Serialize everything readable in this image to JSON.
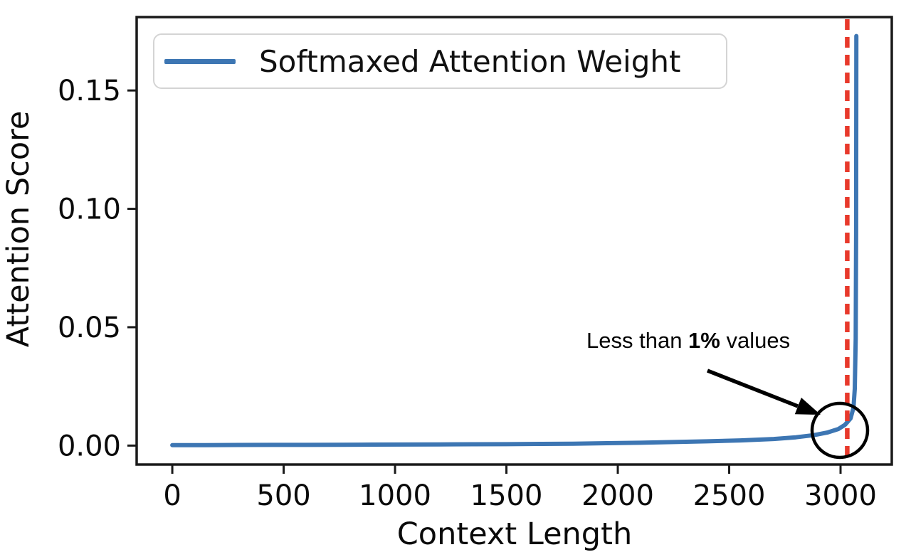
{
  "figure": {
    "background_color": "#ffffff",
    "text_color": "#0a0a0a",
    "axis_line_color": "#1a1a1a"
  },
  "legend": {
    "label": "Softmaxed Attention Weight",
    "swatch_color": "#3d76b3"
  },
  "annotation": {
    "prefix": "Less than ",
    "bold": "1%",
    "suffix": " values"
  },
  "chart_data": {
    "type": "line",
    "title": "",
    "xlabel": "Context Length",
    "ylabel": "Attention Score",
    "xlim": [
      -160,
      3230
    ],
    "ylim": [
      -0.008,
      0.181
    ],
    "grid": false,
    "legend_position": "upper left",
    "x_ticks": [
      0,
      500,
      1000,
      1500,
      2000,
      2500,
      3000
    ],
    "x_tick_labels": [
      "0",
      "500",
      "1000",
      "1500",
      "2000",
      "2500",
      "3000"
    ],
    "y_ticks": [
      0.0,
      0.05,
      0.1,
      0.15
    ],
    "y_tick_labels": [
      "0.00",
      "0.05",
      "0.10",
      "0.15"
    ],
    "cutoff_line": {
      "x": 3030,
      "color": "#e8392b",
      "style": "dashed"
    },
    "annotations": [
      {
        "text": "Less than 1% values",
        "points_to_x": 2995,
        "points_to_y": 0.0066
      }
    ],
    "series": [
      {
        "name": "Softmaxed Attention Weight",
        "color": "#3d76b3",
        "points": [
          [
            0,
            0.0002
          ],
          [
            150,
            0.0002
          ],
          [
            300,
            0.00025
          ],
          [
            450,
            0.0003
          ],
          [
            600,
            0.0003
          ],
          [
            750,
            0.00035
          ],
          [
            900,
            0.0004
          ],
          [
            1050,
            0.00045
          ],
          [
            1200,
            0.0005
          ],
          [
            1350,
            0.00055
          ],
          [
            1500,
            0.0006
          ],
          [
            1650,
            0.0007
          ],
          [
            1800,
            0.0008
          ],
          [
            1950,
            0.001
          ],
          [
            2100,
            0.0012
          ],
          [
            2250,
            0.0015
          ],
          [
            2400,
            0.0018
          ],
          [
            2550,
            0.0022
          ],
          [
            2700,
            0.0028
          ],
          [
            2800,
            0.0035
          ],
          [
            2880,
            0.0044
          ],
          [
            2940,
            0.0055
          ],
          [
            2990,
            0.007
          ],
          [
            3020,
            0.0088
          ],
          [
            3045,
            0.0115
          ],
          [
            3058,
            0.016
          ],
          [
            3064,
            0.024
          ],
          [
            3068,
            0.045
          ],
          [
            3070,
            0.09
          ],
          [
            3071,
            0.173
          ]
        ]
      }
    ]
  }
}
